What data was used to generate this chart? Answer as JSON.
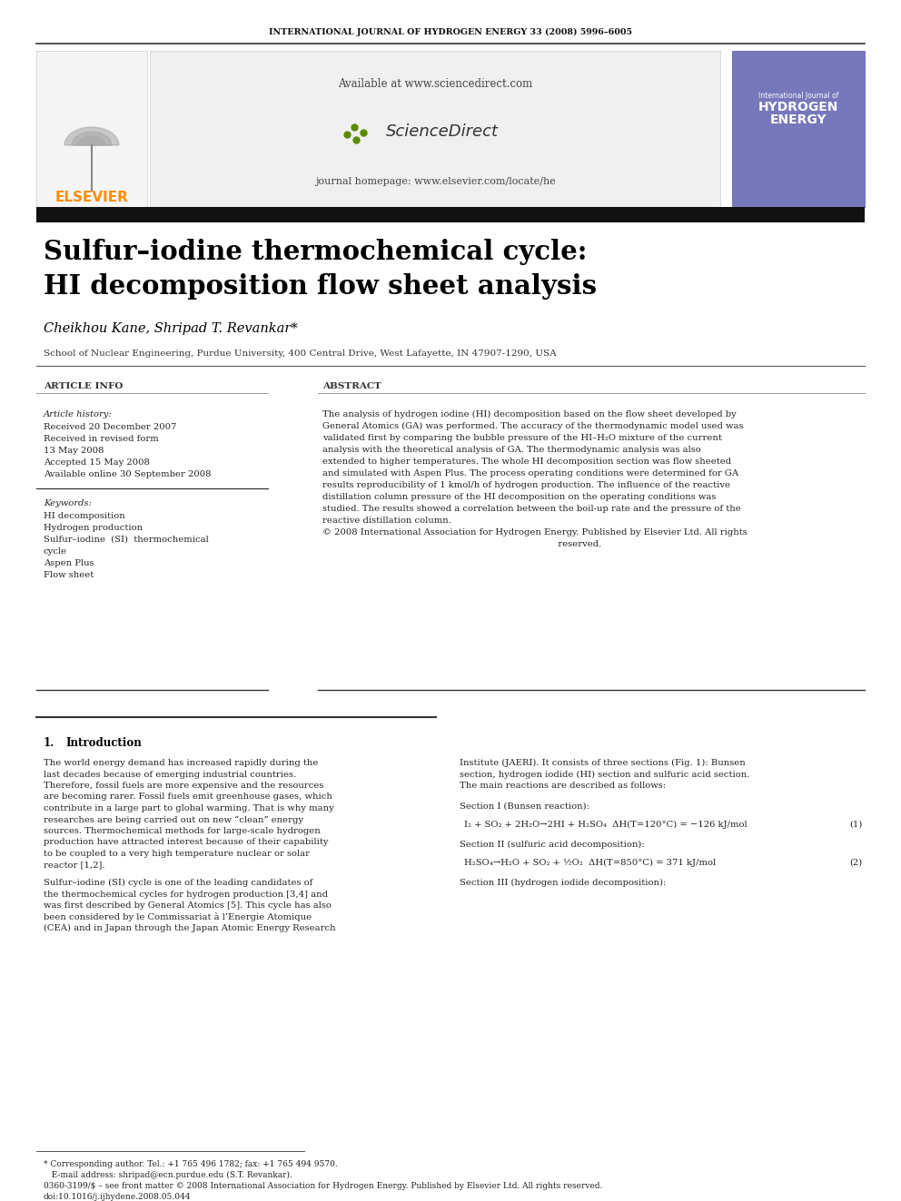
{
  "journal_header": "INTERNATIONAL JOURNAL OF HYDROGEN ENERGY 33 (2008) 5996–6005",
  "sciencedirect_url": "Available at www.sciencedirect.com",
  "journal_homepage": "journal homepage: www.elsevier.com/locate/he",
  "title_line1": "Sulfur–iodine thermochemical cycle:",
  "title_line2": "HI decomposition flow sheet analysis",
  "authors": "Cheikhou Kane, Shripad T. Revankar*",
  "affiliation": "School of Nuclear Engineering, Purdue University, 400 Central Drive, West Lafayette, IN 47907-1290, USA",
  "article_info_header": "ARTICLE INFO",
  "abstract_header": "ABSTRACT",
  "article_history_label": "Article history:",
  "received": "Received 20 December 2007",
  "revised_label": "Received in revised form",
  "revised_date": "13 May 2008",
  "accepted": "Accepted 15 May 2008",
  "available": "Available online 30 September 2008",
  "keywords_label": "Keywords:",
  "keywords": [
    "HI decomposition",
    "Hydrogen production",
    "Sulfur–iodine  (SI)  thermochemical\ncycle",
    "Aspen Plus",
    "Flow sheet"
  ],
  "abs_lines": [
    "The analysis of hydrogen iodine (HI) decomposition based on the flow sheet developed by",
    "General Atomics (GA) was performed. The accuracy of the thermodynamic model used was",
    "validated first by comparing the bubble pressure of the HI–H₂O mixture of the current",
    "analysis with the theoretical analysis of GA. The thermodynamic analysis was also",
    "extended to higher temperatures. The whole HI decomposition section was flow sheeted",
    "and simulated with Aspen Plus. The process operating conditions were determined for GA",
    "results reproducibility of 1 kmol/h of hydrogen production. The influence of the reactive",
    "distillation column pressure of the HI decomposition on the operating conditions was",
    "studied. The results showed a correlation between the boil-up rate and the pressure of the",
    "reactive distillation column.",
    "© 2008 International Association for Hydrogen Energy. Published by Elsevier Ltd. All rights",
    "                                                                                   reserved."
  ],
  "section1_num": "1.",
  "section1_title": "Introduction",
  "intro_col1_p1": [
    "The world energy demand has increased rapidly during the",
    "last decades because of emerging industrial countries.",
    "Therefore, fossil fuels are more expensive and the resources",
    "are becoming rarer. Fossil fuels emit greenhouse gases, which",
    "contribute in a large part to global warming. That is why many",
    "researches are being carried out on new “clean” energy",
    "sources. Thermochemical methods for large-scale hydrogen",
    "production have attracted interest because of their capability",
    "to be coupled to a very high temperature nuclear or solar",
    "reactor [1,2]."
  ],
  "intro_col1_p2": [
    "Sulfur–iodine (SI) cycle is one of the leading candidates of",
    "the thermochemical cycles for hydrogen production [3,4] and",
    "was first described by General Atomics [5]. This cycle has also",
    "been considered by le Commissariat à l’Energie Atomique",
    "(CEA) and in Japan through the Japan Atomic Energy Research"
  ],
  "intro_col2_p1": [
    "Institute (JAERI). It consists of three sections (Fig. 1): Bunsen",
    "section, hydrogen iodide (HI) section and sulfuric acid section.",
    "The main reactions are described as follows:"
  ],
  "sec1_bunsen": "Section I (Bunsen reaction):",
  "eq1": "I₂ + SO₂ + 2H₂O→2HI + H₂SO₄  ΔH(T=120°C) = −126 kJ/mol",
  "eq1_num": "(1)",
  "sec2_sulfuric": "Section II (sulfuric acid decomposition):",
  "eq2": "H₂SO₄→H₂O + SO₂ + ½O₂  ΔH(T=850°C) = 371 kJ/mol",
  "eq2_num": "(2)",
  "sec3_hi": "Section III (hydrogen iodide decomposition):",
  "footnote_star": "* Corresponding author. Tel.: +1 765 496 1782; fax: +1 765 494 9570.",
  "footnote_email": "   E-mail address: shripad@ecn.purdue.edu (S.T. Revankar).",
  "footnote_issn": "0360-3199/$ – see front matter © 2008 International Association for Hydrogen Energy. Published by Elsevier Ltd. All rights reserved.",
  "footnote_doi": "doi:10.1016/j.ijhydene.2008.05.044",
  "header_bg": "#1a1a1a",
  "elsevier_color": "#FF8C00",
  "sd_green": "#5a8a00",
  "bg_color": "#ffffff"
}
